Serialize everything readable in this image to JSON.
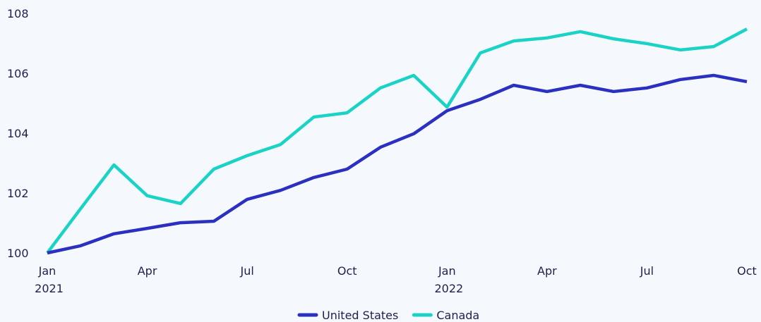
{
  "chart_data": {
    "type": "line",
    "categories": [
      "Jan 2021",
      null,
      null,
      "Apr",
      null,
      null,
      "Jul",
      null,
      null,
      "Oct",
      null,
      null,
      "Jan 2022",
      null,
      null,
      "Apr",
      null,
      null,
      "Jul",
      null,
      null,
      "Oct"
    ],
    "series": [
      {
        "name": "United States",
        "color": "#2b30c0",
        "values": [
          100.0,
          100.24,
          100.64,
          100.82,
          101.01,
          101.06,
          101.79,
          102.09,
          102.52,
          102.8,
          103.53,
          103.98,
          104.75,
          105.13,
          105.6,
          105.39,
          105.6,
          105.39,
          105.51,
          105.79,
          105.93,
          105.72
        ]
      },
      {
        "name": "Canada",
        "color": "#1ad3c6",
        "values": [
          100.0,
          101.48,
          102.94,
          101.91,
          101.65,
          102.8,
          103.25,
          103.62,
          104.54,
          104.68,
          105.51,
          105.93,
          104.87,
          106.68,
          107.08,
          107.18,
          107.39,
          107.15,
          106.99,
          106.78,
          106.89,
          107.48
        ]
      }
    ],
    "ylim": [
      100,
      108
    ],
    "yticks": [
      100,
      102,
      104,
      106,
      108
    ],
    "grid": false,
    "legend": "bottom"
  }
}
